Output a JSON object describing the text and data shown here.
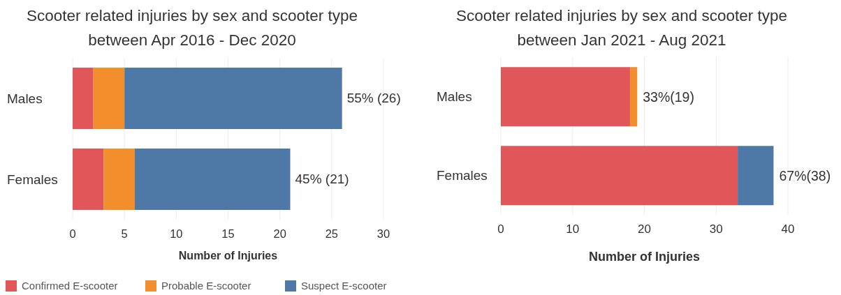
{
  "chart_data": [
    {
      "type": "bar",
      "orientation": "horizontal",
      "stacked": true,
      "title": "Scooter related injuries by sex and scooter type between Apr 2016 - Dec 2020",
      "xlabel": "Number of Injuries",
      "categories": [
        "Males",
        "Females"
      ],
      "series": [
        {
          "name": "Confirmed E-scooter",
          "color": "#e15759",
          "values": [
            2,
            3
          ]
        },
        {
          "name": "Probable E-scooter",
          "color": "#f28e2b",
          "values": [
            3,
            3
          ]
        },
        {
          "name": "Suspect E-scooter",
          "color": "#4e79a7",
          "values": [
            21,
            15
          ]
        }
      ],
      "xlim": [
        0,
        30
      ],
      "xticks": [
        0,
        5,
        10,
        15,
        20,
        25,
        30
      ],
      "grid": "x",
      "legend": "bottom left",
      "totals": [
        "55% (26)",
        "45% (21)"
      ]
    },
    {
      "type": "bar",
      "orientation": "horizontal",
      "stacked": true,
      "title": "Scooter related injuries by sex and scooter type between Jan 2021 - Aug 2021",
      "xlabel": "Number of Injuries",
      "categories": [
        "Males",
        "Females"
      ],
      "series": [
        {
          "color": "#e15759",
          "values": [
            18,
            33
          ]
        },
        {
          "color": "#f28e2b",
          "values": [
            1,
            0
          ]
        },
        {
          "color": "#4e79a7",
          "values": [
            0,
            5
          ]
        }
      ],
      "xlim": [
        0,
        40
      ],
      "xticks": [
        0,
        10,
        20,
        30,
        40
      ],
      "grid": "x",
      "totals": [
        "33%(19)",
        "67%(38)"
      ]
    }
  ]
}
